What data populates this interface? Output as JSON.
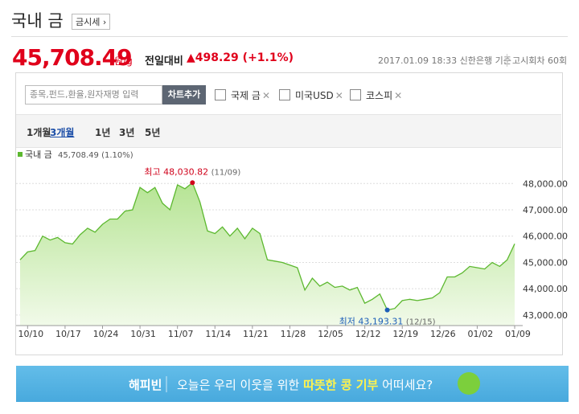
{
  "header": {
    "title": "국내 금",
    "button": "금시세",
    "price": "45,708.49",
    "unit": "원/g",
    "change_label": "전일대비",
    "change": "▲498.29",
    "change_pct": "(+1.1%)",
    "timestamp": "2017.01.09 18:33 신한은행 기준",
    "round": "고시회차 60회"
  },
  "toolbar": {
    "search_placeholder": "종목,펀드,환율,원자재명 입력",
    "add_button": "차트추가",
    "compare": [
      "국제 금",
      "미국USD",
      "코스피"
    ]
  },
  "tabs": {
    "items": [
      "1개월",
      "3개월",
      "1년",
      "3년",
      "5년"
    ],
    "active": 1
  },
  "chart_data": {
    "type": "area",
    "legend_text": "45,708.49 (1.10%)",
    "categories": [
      null,
      "10/10",
      null,
      null,
      null,
      null,
      "10/17",
      null,
      null,
      null,
      null,
      "10/24",
      null,
      null,
      null,
      null,
      "10/31",
      null,
      null,
      null,
      null,
      "11/07",
      null,
      null,
      null,
      null,
      "11/14",
      null,
      null,
      null,
      null,
      "11/21",
      null,
      null,
      null,
      null,
      "11/28",
      null,
      null,
      null,
      null,
      "12/05",
      null,
      null,
      null,
      null,
      "12/12",
      null,
      null,
      null,
      null,
      "12/19",
      null,
      null,
      null,
      null,
      "12/26",
      null,
      null,
      null,
      null,
      "01/02",
      null,
      null,
      null,
      null,
      "01/09"
    ],
    "series": [
      {
        "name": "국내 금",
        "color": "#5cb82f",
        "values": [
          45100,
          45400,
          45450,
          46000,
          45850,
          45950,
          45750,
          45700,
          46050,
          46300,
          46150,
          46450,
          46650,
          46650,
          46950,
          47000,
          47850,
          47650,
          47850,
          47250,
          47000,
          47950,
          47800,
          48030.82,
          47300,
          46200,
          46100,
          46350,
          46000,
          46300,
          45900,
          46300,
          46100,
          45100,
          45050,
          45000,
          44900,
          44800,
          43950,
          44400,
          44100,
          44250,
          44050,
          44100,
          43950,
          44050,
          43450,
          43600,
          43800,
          43193.31,
          43250,
          43550,
          43600,
          43550,
          43600,
          43650,
          43850,
          44450,
          44450,
          44600,
          44850,
          44800,
          44750,
          45000,
          44850,
          45100,
          45708.49
        ]
      }
    ],
    "ylim": [
      42600,
      48650
    ],
    "yticks": [
      {
        "value": 43000,
        "label": "43,000.00"
      },
      {
        "value": 44000,
        "label": "44,000.00"
      },
      {
        "value": 45000,
        "label": "45,000.00"
      },
      {
        "value": 46000,
        "label": "46,000.00"
      },
      {
        "value": 47000,
        "label": "47,000.00"
      },
      {
        "value": 48000,
        "label": "48,000.00"
      }
    ],
    "grid": true,
    "annotations": [
      {
        "text": "최고 48,030.82",
        "date": "(11/09)",
        "value": 48030.82,
        "color": "#d0021b"
      },
      {
        "text": "최저 43,193.31",
        "date": "(12/15)",
        "value": 43193.31,
        "color": "#1d5fb8"
      }
    ]
  },
  "banner": {
    "brand": "해피빈",
    "before": "오늘은 우리 이웃을 위한 ",
    "highlight": "따뜻한 콩 기부",
    "after": " 어떠세요?"
  }
}
